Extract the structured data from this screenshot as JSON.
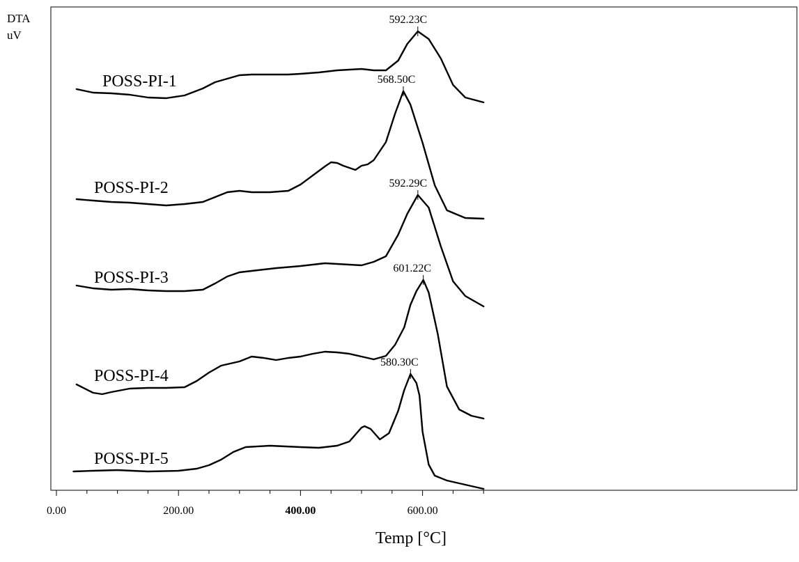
{
  "chart_data": {
    "type": "line",
    "ylabel_lines": [
      "DTA",
      "uV"
    ],
    "xlabel": "Temp [°C]",
    "xlim": [
      0,
      707
    ],
    "xticks": [
      {
        "value": 0,
        "label": "0.00",
        "bold": false
      },
      {
        "value": 200,
        "label": "200.00",
        "bold": false
      },
      {
        "value": 400,
        "label": "400.00",
        "bold": true
      },
      {
        "value": 600,
        "label": "600.00",
        "bold": false
      }
    ],
    "minor_tick_step": 50,
    "series": [
      {
        "name": "POSS-PI-1",
        "peak_value": 592.23,
        "peak_label": "592.23C",
        "x": [
          33,
          60,
          90,
          120,
          150,
          180,
          210,
          240,
          260,
          280,
          300,
          320,
          350,
          380,
          400,
          430,
          460,
          480,
          500,
          520,
          540,
          560,
          575,
          592.23,
          610,
          630,
          650,
          670,
          700
        ],
        "y": [
          128,
          133,
          134,
          136,
          140,
          141,
          137,
          127,
          118,
          113,
          108,
          107,
          107,
          107,
          106,
          104,
          101,
          100,
          99,
          101,
          101,
          87,
          63,
          45,
          56,
          84,
          122,
          140,
          147
        ]
      },
      {
        "name": "POSS-PI-2",
        "peak_value": 568.5,
        "peak_label": "568.50C",
        "x": [
          33,
          60,
          90,
          120,
          150,
          180,
          210,
          240,
          260,
          280,
          300,
          320,
          350,
          380,
          400,
          420,
          440,
          450,
          460,
          470,
          480,
          490,
          500,
          510,
          520,
          540,
          555,
          568.5,
          580,
          600,
          620,
          640,
          670,
          700
        ],
        "y": [
          286,
          288,
          290,
          291,
          293,
          295,
          293,
          290,
          283,
          276,
          274,
          276,
          276,
          274,
          265,
          252,
          239,
          233,
          234,
          238,
          241,
          244,
          238,
          236,
          230,
          204,
          163,
          131,
          150,
          205,
          266,
          302,
          313,
          314
        ]
      },
      {
        "name": "POSS-PI-3",
        "peak_value": 592.29,
        "peak_label": "592.29C",
        "x": [
          33,
          60,
          90,
          120,
          150,
          180,
          210,
          240,
          260,
          280,
          300,
          330,
          360,
          400,
          420,
          440,
          460,
          480,
          500,
          520,
          540,
          560,
          575,
          592.29,
          610,
          630,
          650,
          670,
          700
        ],
        "y": [
          410,
          414,
          416,
          415,
          417,
          418,
          418,
          416,
          407,
          397,
          391,
          388,
          385,
          382,
          380,
          378,
          379,
          380,
          381,
          376,
          368,
          337,
          307,
          280,
          298,
          354,
          404,
          425,
          440
        ]
      },
      {
        "name": "POSS-PI-4",
        "peak_value": 601.22,
        "peak_label": "601.22C",
        "x": [
          33,
          60,
          75,
          90,
          120,
          150,
          180,
          210,
          230,
          250,
          270,
          300,
          320,
          340,
          360,
          380,
          400,
          420,
          440,
          460,
          480,
          500,
          520,
          540,
          555,
          570,
          580,
          590,
          601.22,
          610,
          625,
          640,
          660,
          680,
          700
        ],
        "y": [
          552,
          564,
          566,
          563,
          558,
          557,
          557,
          556,
          547,
          535,
          525,
          519,
          512,
          514,
          517,
          514,
          512,
          508,
          505,
          506,
          508,
          512,
          516,
          511,
          495,
          470,
          438,
          418,
          402,
          420,
          480,
          555,
          588,
          597,
          601
        ]
      },
      {
        "name": "POSS-PI-5",
        "peak_value": 580.3,
        "peak_label": "580.30C",
        "x": [
          28,
          60,
          100,
          150,
          200,
          230,
          250,
          270,
          290,
          310,
          350,
          400,
          430,
          460,
          480,
          500,
          505,
          515,
          530,
          545,
          560,
          570,
          580.3,
          590,
          595,
          600,
          610,
          620,
          640,
          670,
          700
        ],
        "y": [
          677,
          676,
          675,
          677,
          676,
          673,
          668,
          660,
          649,
          642,
          640,
          642,
          643,
          640,
          634,
          614,
          612,
          616,
          631,
          622,
          590,
          560,
          537,
          550,
          568,
          620,
          667,
          683,
          690,
          696,
          702
        ]
      }
    ]
  }
}
